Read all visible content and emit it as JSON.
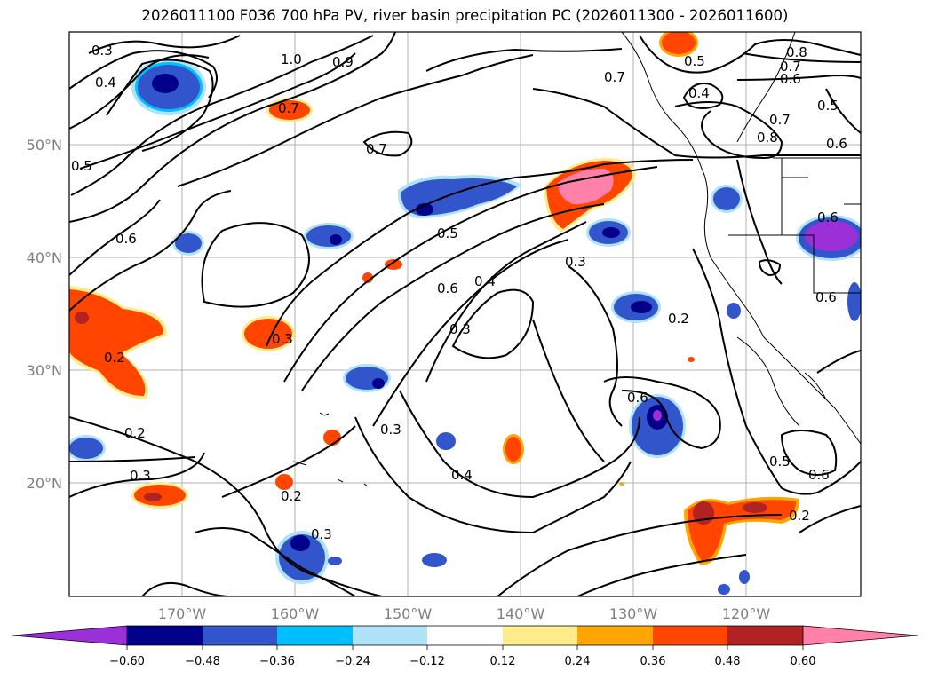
{
  "title": "2026011100 F036 700 hPa PV, river basin precipitation PC (2026011300 - 2026011600)",
  "lat_labels": [
    "50°N",
    "40°N",
    "30°N",
    "20°N"
  ],
  "lon_labels": [
    "170°W",
    "160°W",
    "150°W",
    "140°W",
    "130°W",
    "120°W"
  ],
  "contour_labels": [
    "0.3",
    "0.4",
    "1.0",
    "0.9",
    "0.7",
    "0.5",
    "0.4",
    "0.8",
    "0.7",
    "0.6",
    "0.5",
    "0.7",
    "0.8",
    "0.6",
    "0.7",
    "0.5",
    "0.6",
    "0.5",
    "0.6",
    "0.3",
    "0.7",
    "0.6",
    "0.4",
    "0.3",
    "0.2",
    "0.3",
    "0.2",
    "0.2",
    "0.3",
    "0.3",
    "0.4",
    "0.2",
    "0.3",
    "0.5",
    "0.6",
    "0.2",
    "0.6",
    "0.6"
  ],
  "colorbar": {
    "colors": [
      "#9b30d9",
      "#00008b",
      "#3355cc",
      "#00bfff",
      "#aee3f8",
      "#ffffff",
      "#ffec8b",
      "#ffa500",
      "#ff4500",
      "#b22222",
      "#ff80a8"
    ],
    "tick_labels": [
      "−0.60",
      "−0.48",
      "−0.36",
      "−0.24",
      "−0.12",
      "0.12",
      "0.24",
      "0.36",
      "0.48",
      "0.60"
    ]
  }
}
